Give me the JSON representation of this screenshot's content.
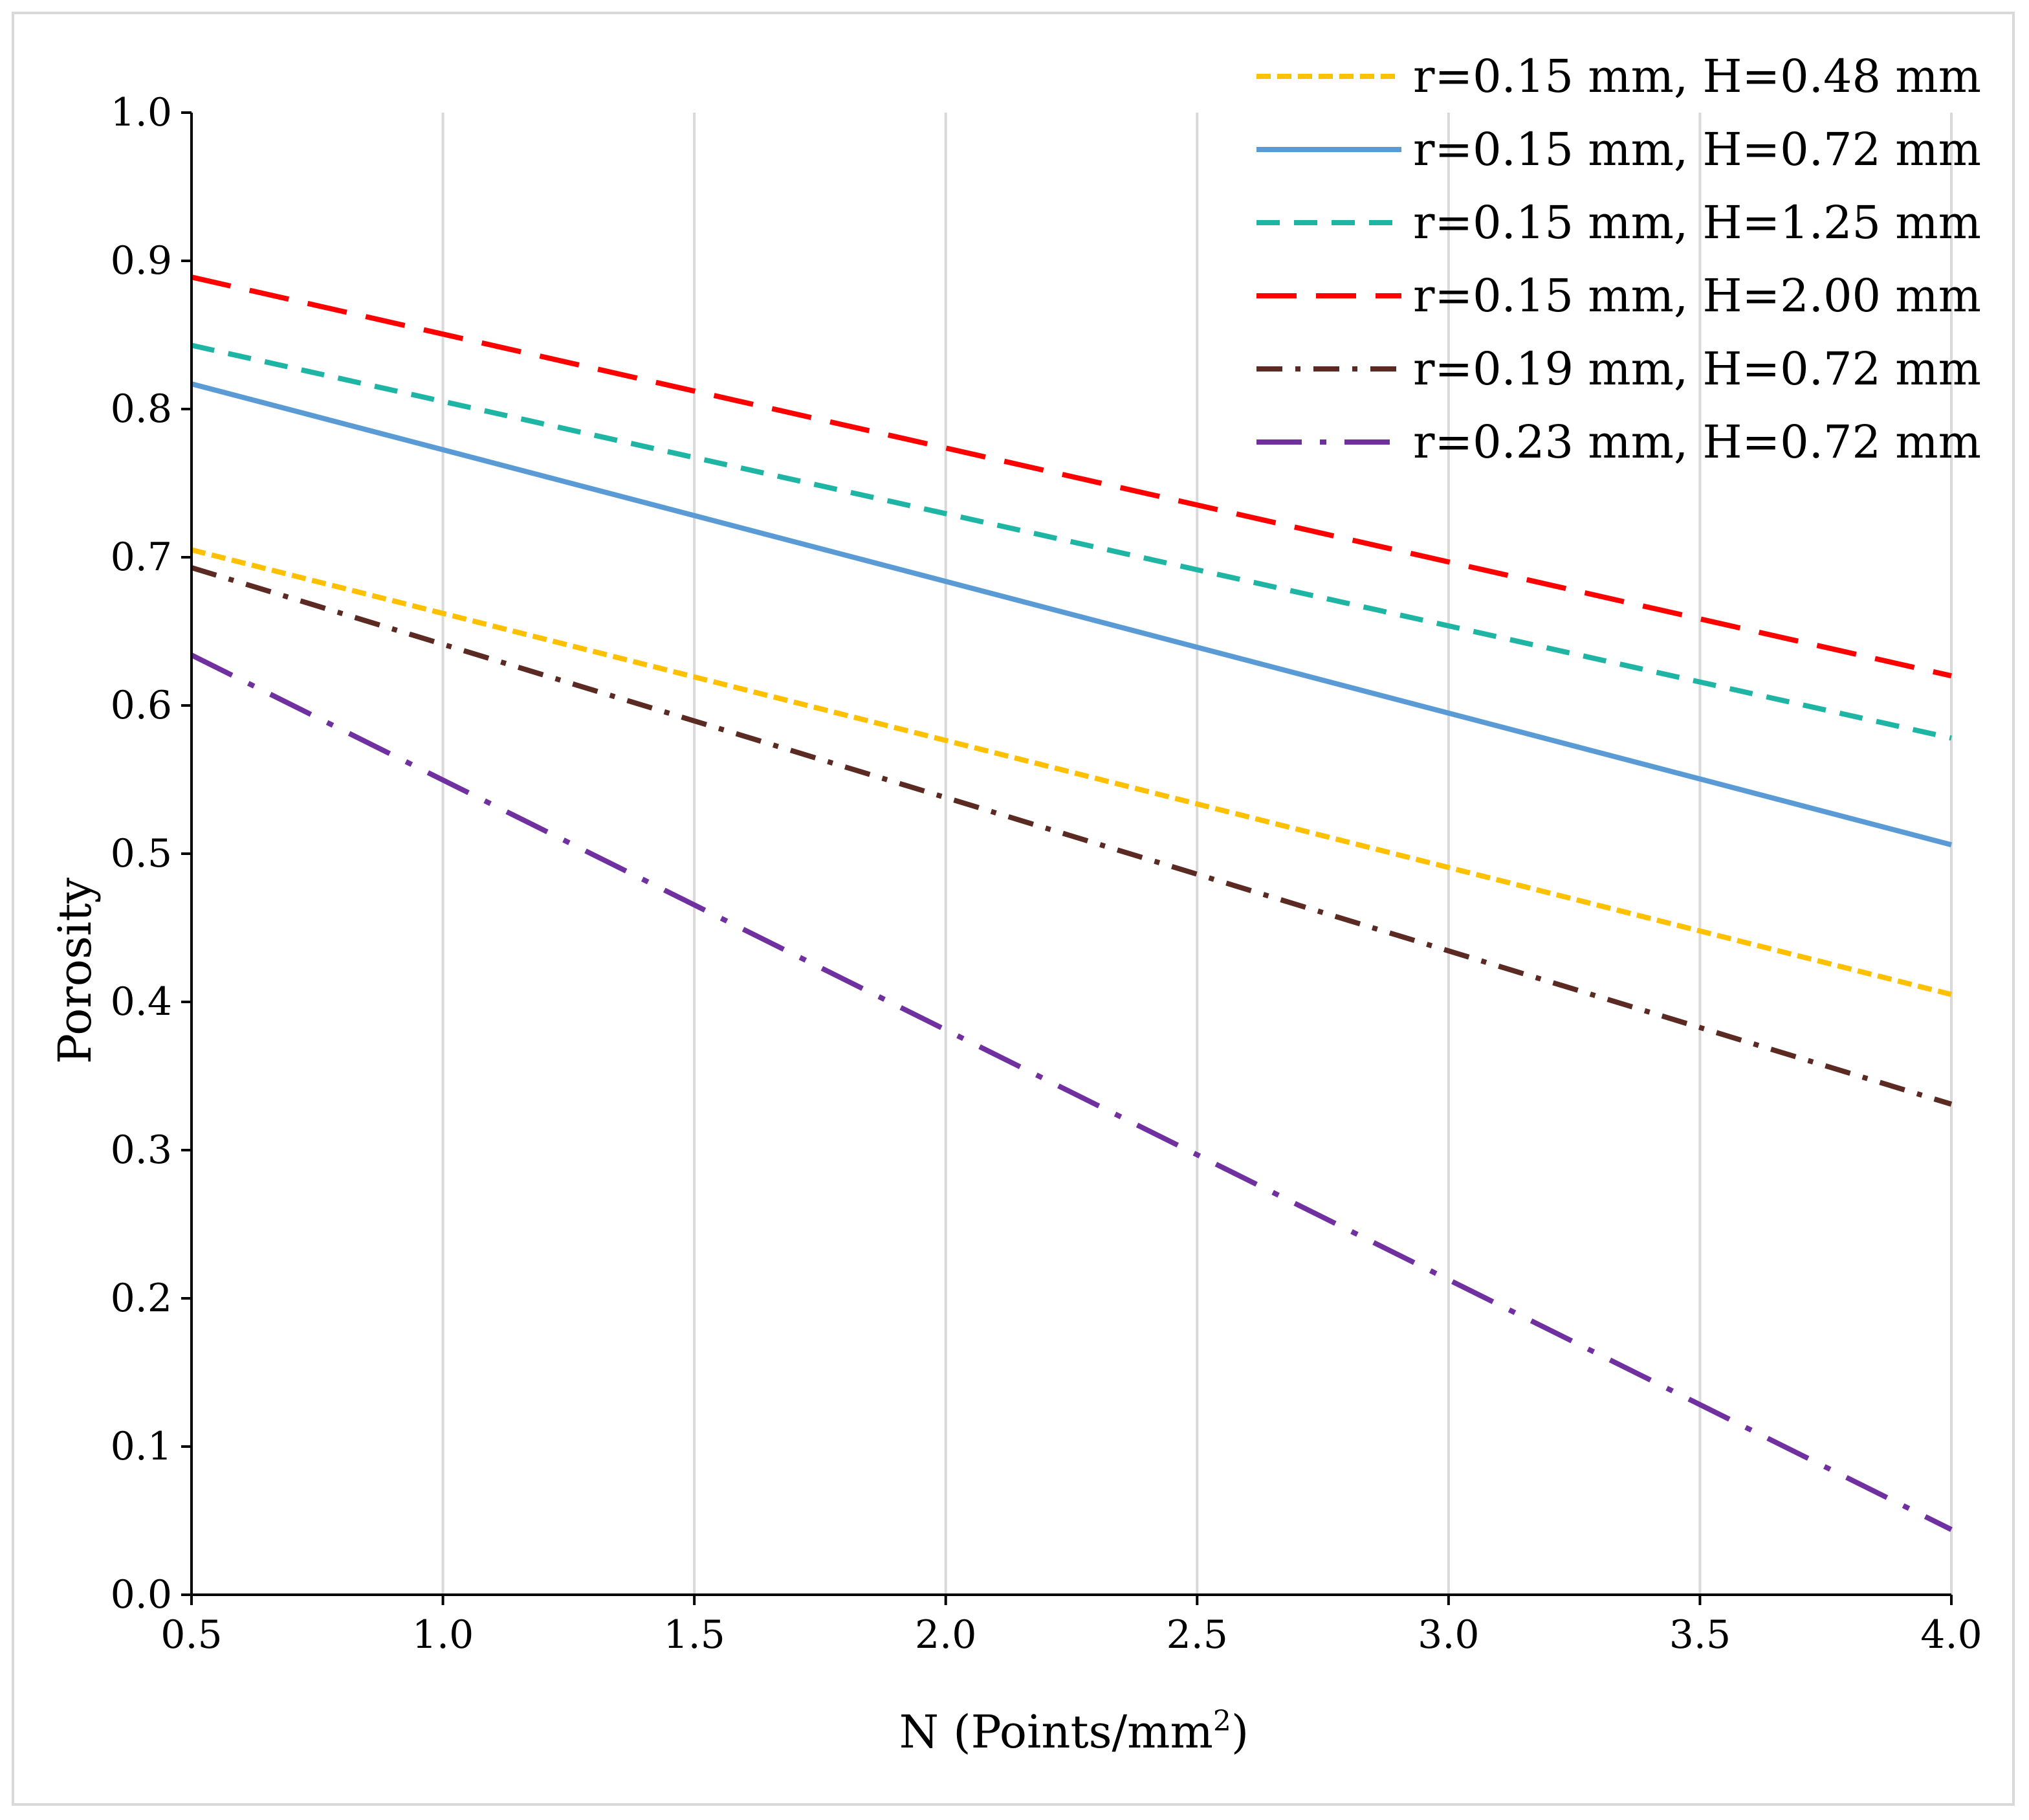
{
  "chart_data": {
    "type": "line",
    "title": "",
    "xlabel_main": "N (Points/mm",
    "xlabel_sup": "2",
    "xlabel_tail": ")",
    "ylabel": "Porosity",
    "xlim": [
      0.5,
      4.0
    ],
    "ylim": [
      0.0,
      1.0
    ],
    "x_ticks": [
      "0.5",
      "1.0",
      "1.5",
      "2.0",
      "2.5",
      "3.0",
      "3.5",
      "4.0"
    ],
    "y_ticks": [
      "0.0",
      "0.1",
      "0.2",
      "0.3",
      "0.4",
      "0.5",
      "0.6",
      "0.7",
      "0.8",
      "0.9",
      "1.0"
    ],
    "x_tick_values": [
      0.5,
      1.0,
      1.5,
      2.0,
      2.5,
      3.0,
      3.5,
      4.0
    ],
    "y_tick_values": [
      0.0,
      0.1,
      0.2,
      0.3,
      0.4,
      0.5,
      0.6,
      0.7,
      0.8,
      0.9,
      1.0
    ],
    "grid": "vertical",
    "legend_position": "top-right",
    "x": [
      0.5,
      4.0
    ],
    "series": [
      {
        "name": "r=0.15 mm, H=0.48 mm",
        "values": [
          0.705,
          0.405
        ],
        "color": "#FFC000",
        "dash": "short-dash"
      },
      {
        "name": "r=0.15 mm, H=0.72 mm",
        "values": [
          0.817,
          0.506
        ],
        "color": "#5B9BD5",
        "dash": "solid"
      },
      {
        "name": "r=0.15 mm, H=1.25 mm",
        "values": [
          0.843,
          0.578
        ],
        "color": "#1FB5A5",
        "dash": "dash"
      },
      {
        "name": "r=0.15 mm, H=2.00 mm",
        "values": [
          0.889,
          0.62
        ],
        "color": "#FF0000",
        "dash": "long-dash"
      },
      {
        "name": "r=0.19 mm, H=0.72 mm",
        "values": [
          0.693,
          0.331
        ],
        "color": "#5B2A22",
        "dash": "dash-dot"
      },
      {
        "name": "r=0.23 mm, H=0.72 mm",
        "values": [
          0.634,
          0.044
        ],
        "color": "#7030A0",
        "dash": "long-dash-dot"
      }
    ]
  }
}
